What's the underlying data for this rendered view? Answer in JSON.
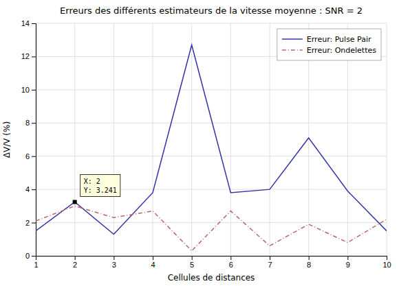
{
  "chart_data": {
    "type": "line",
    "title": "Erreurs des différents estimateurs de la vitesse moyenne : SNR = 2",
    "xlabel": "Cellules de distances",
    "ylabel": "ΔV/V  (%)",
    "x": [
      1,
      2,
      3,
      4,
      5,
      6,
      7,
      8,
      9,
      10
    ],
    "series": [
      {
        "name": "Erreur: Pulse Pair",
        "color": "#3333aa",
        "line_style": "solid",
        "values": [
          1.5,
          3.241,
          1.3,
          3.8,
          12.7,
          3.8,
          4.0,
          7.1,
          3.9,
          1.5
        ]
      },
      {
        "name": "Erreur: Ondelettes",
        "color": "#bb6666",
        "line_style": "dashdot",
        "values": [
          2.1,
          3.0,
          2.3,
          2.7,
          0.3,
          2.7,
          0.6,
          1.9,
          0.8,
          2.2
        ]
      }
    ],
    "xlim": [
      1,
      10
    ],
    "ylim": [
      0,
      14
    ],
    "xticks": [
      1,
      2,
      3,
      4,
      5,
      6,
      7,
      8,
      9,
      10
    ],
    "yticks": [
      0,
      2,
      4,
      6,
      8,
      10,
      12,
      14
    ],
    "grid": true,
    "legend": "upper right",
    "annotations": [
      {
        "x": 2,
        "y": 3.241,
        "text": "X: 2\nY: 3.241",
        "marker": "square"
      }
    ]
  }
}
